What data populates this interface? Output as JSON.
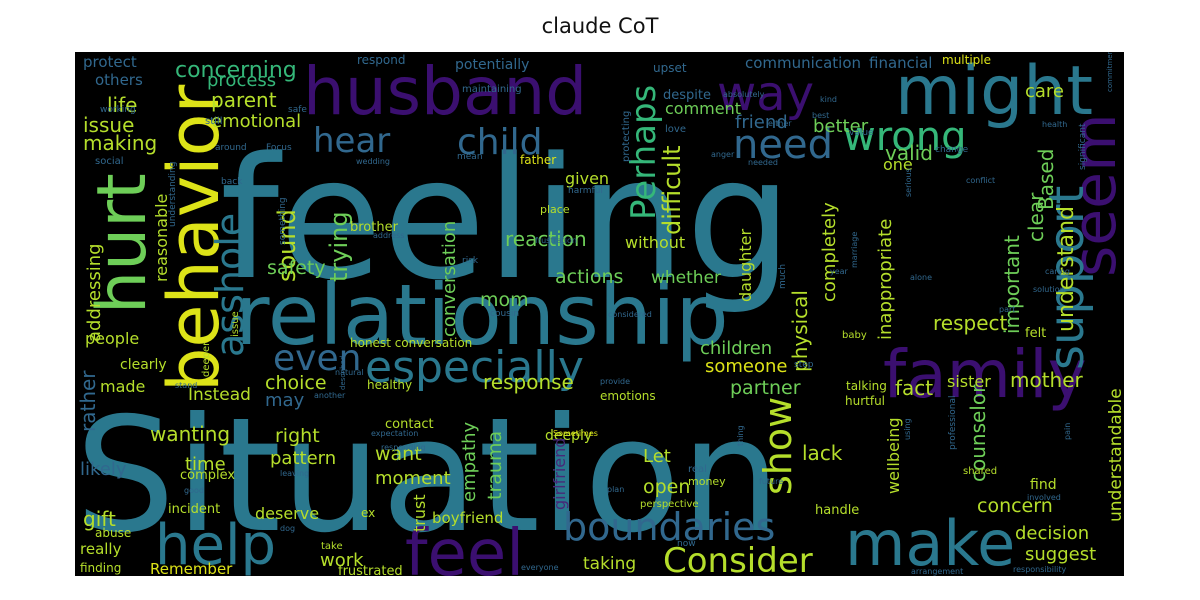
{
  "title": "claude CoT",
  "background_color": "#000000",
  "palette": {
    "p1": "#3b0f70",
    "p2": "#46327e",
    "p3": "#365c8d",
    "p4": "#277f8e",
    "p5": "#1fa187",
    "p6": "#4ac16d",
    "p7": "#a0da39",
    "p8": "#fde725",
    "d1": "#482878",
    "d2": "#31688e",
    "d3": "#2a788e",
    "d4": "#35b779",
    "d5": "#6ece58",
    "d6": "#b5de2b",
    "d7": "#dde318"
  },
  "words": [
    {
      "text": "feeling",
      "color": "d3"
    },
    {
      "text": "Situation",
      "color": "d3"
    },
    {
      "text": "relationship",
      "color": "d3"
    },
    {
      "text": "husband",
      "color": "p1"
    },
    {
      "text": "might",
      "color": "d3"
    },
    {
      "text": "behavior",
      "color": "d7"
    },
    {
      "text": "hurt",
      "color": "d5"
    },
    {
      "text": "help",
      "color": "d3"
    },
    {
      "text": "feel",
      "color": "p1"
    },
    {
      "text": "make",
      "color": "d3"
    },
    {
      "text": "family",
      "color": "p1"
    },
    {
      "text": "seem",
      "color": "p1"
    },
    {
      "text": "support",
      "color": "d3"
    },
    {
      "text": "especially",
      "color": "d3"
    },
    {
      "text": "way",
      "color": "p1"
    },
    {
      "text": "boundaries",
      "color": "d2"
    },
    {
      "text": "Consider",
      "color": "d6"
    },
    {
      "text": "hear",
      "color": "d2"
    },
    {
      "text": "child",
      "color": "d2"
    },
    {
      "text": "need",
      "color": "d2"
    },
    {
      "text": "wrong",
      "color": "d4"
    },
    {
      "text": "asshole",
      "color": "d3"
    },
    {
      "text": "even",
      "color": "d2"
    },
    {
      "text": "Perhaps",
      "color": "d4"
    },
    {
      "text": "show",
      "color": "d6"
    },
    {
      "text": "concerning",
      "color": "d4"
    },
    {
      "text": "life",
      "color": "d6"
    },
    {
      "text": "issue",
      "color": "d6"
    },
    {
      "text": "making",
      "color": "d6"
    },
    {
      "text": "parent",
      "color": "d6"
    },
    {
      "text": "process",
      "color": "d4"
    },
    {
      "text": "emotional",
      "color": "d6"
    },
    {
      "text": "communication",
      "color": "d2"
    },
    {
      "text": "financial",
      "color": "d2"
    },
    {
      "text": "care",
      "color": "d6"
    },
    {
      "text": "friend",
      "color": "d2"
    },
    {
      "text": "better",
      "color": "d5"
    },
    {
      "text": "comment",
      "color": "d5"
    },
    {
      "text": "valid",
      "color": "d5"
    },
    {
      "text": "difficult",
      "color": "d6"
    },
    {
      "text": "understand",
      "color": "d6"
    },
    {
      "text": "important",
      "color": "d5"
    },
    {
      "text": "clear",
      "color": "d5"
    },
    {
      "text": "Based",
      "color": "d5"
    },
    {
      "text": "sound",
      "color": "d6"
    },
    {
      "text": "trying",
      "color": "d5"
    },
    {
      "text": "conversation",
      "color": "d5"
    },
    {
      "text": "reaction",
      "color": "d5"
    },
    {
      "text": "actions",
      "color": "d5"
    },
    {
      "text": "whether",
      "color": "d5"
    },
    {
      "text": "safety",
      "color": "d5"
    },
    {
      "text": "mom",
      "color": "d5"
    },
    {
      "text": "children",
      "color": "d5"
    },
    {
      "text": "respect",
      "color": "d6"
    },
    {
      "text": "choice",
      "color": "d6"
    },
    {
      "text": "response",
      "color": "d6"
    },
    {
      "text": "someone",
      "color": "d7"
    },
    {
      "text": "partner",
      "color": "d5"
    },
    {
      "text": "fact",
      "color": "d6"
    },
    {
      "text": "sister",
      "color": "d6"
    },
    {
      "text": "mother",
      "color": "d6"
    },
    {
      "text": "Instead",
      "color": "d6"
    },
    {
      "text": "right",
      "color": "d6"
    },
    {
      "text": "wanting",
      "color": "d6"
    },
    {
      "text": "time",
      "color": "d6"
    },
    {
      "text": "pattern",
      "color": "d6"
    },
    {
      "text": "want",
      "color": "d6"
    },
    {
      "text": "moment",
      "color": "d6"
    },
    {
      "text": "empathy",
      "color": "d5"
    },
    {
      "text": "trauma",
      "color": "d5"
    },
    {
      "text": "Let",
      "color": "d6"
    },
    {
      "text": "open",
      "color": "d6"
    },
    {
      "text": "lack",
      "color": "d6"
    },
    {
      "text": "counselor",
      "color": "d5"
    },
    {
      "text": "concern",
      "color": "d6"
    },
    {
      "text": "decision",
      "color": "d6"
    },
    {
      "text": "suggest",
      "color": "d6"
    },
    {
      "text": "taking",
      "color": "d6"
    },
    {
      "text": "work",
      "color": "d6"
    },
    {
      "text": "deserve",
      "color": "d6"
    },
    {
      "text": "boyfriend",
      "color": "d6"
    },
    {
      "text": "gift",
      "color": "d6"
    },
    {
      "text": "really",
      "color": "d6"
    },
    {
      "text": "Remember",
      "color": "d7"
    },
    {
      "text": "likely",
      "color": "d2"
    },
    {
      "text": "rather",
      "color": "d2"
    },
    {
      "text": "made",
      "color": "d6"
    },
    {
      "text": "people",
      "color": "d6"
    },
    {
      "text": "addressing",
      "color": "d6"
    },
    {
      "text": "reasonable",
      "color": "d6"
    },
    {
      "text": "physical",
      "color": "d6"
    },
    {
      "text": "completely",
      "color": "d6"
    },
    {
      "text": "inappropriate",
      "color": "d6"
    },
    {
      "text": "wellbeing",
      "color": "d6"
    },
    {
      "text": "understandable",
      "color": "d6"
    },
    {
      "text": "daughter",
      "color": "d6"
    },
    {
      "text": "without",
      "color": "d6"
    },
    {
      "text": "given",
      "color": "d6"
    },
    {
      "text": "one",
      "color": "d6"
    },
    {
      "text": "trust",
      "color": "d6"
    },
    {
      "text": "may",
      "color": "d2"
    },
    {
      "text": "protect",
      "color": "d2"
    },
    {
      "text": "others",
      "color": "d2"
    },
    {
      "text": "respond",
      "color": "d2"
    },
    {
      "text": "potentially",
      "color": "d2"
    },
    {
      "text": "upset",
      "color": "d2"
    },
    {
      "text": "multiple",
      "color": "d7"
    },
    {
      "text": "despite",
      "color": "d2"
    },
    {
      "text": "father",
      "color": "d7"
    },
    {
      "text": "brother",
      "color": "d6"
    },
    {
      "text": "honest conversation",
      "color": "d6"
    },
    {
      "text": "clearly",
      "color": "d6"
    },
    {
      "text": "healthy",
      "color": "d6"
    },
    {
      "text": "contact",
      "color": "d6"
    },
    {
      "text": "deeply",
      "color": "d6"
    },
    {
      "text": "emotions",
      "color": "d6"
    },
    {
      "text": "complex",
      "color": "d6"
    },
    {
      "text": "incident",
      "color": "d6"
    },
    {
      "text": "handle",
      "color": "d6"
    },
    {
      "text": "find",
      "color": "d6"
    },
    {
      "text": "felt",
      "color": "d6"
    },
    {
      "text": "hurtful",
      "color": "d6"
    },
    {
      "text": "talking",
      "color": "d6"
    },
    {
      "text": "girlfriend",
      "color": "d1"
    },
    {
      "text": "frustrated",
      "color": "d6"
    },
    {
      "text": "abuse",
      "color": "d6"
    },
    {
      "text": "finding",
      "color": "d6"
    },
    {
      "text": "deeper",
      "color": "d6"
    },
    {
      "text": "issue",
      "color": "d6"
    },
    {
      "text": "maintaining",
      "color": "d2"
    },
    {
      "text": "protecting",
      "color": "d2"
    },
    {
      "text": "love",
      "color": "d2"
    },
    {
      "text": "social",
      "color": "d2"
    },
    {
      "text": "working",
      "color": "d2"
    },
    {
      "text": "safe",
      "color": "d2"
    },
    {
      "text": "still",
      "color": "d2"
    },
    {
      "text": "around",
      "color": "d2"
    },
    {
      "text": "Focus",
      "color": "d2"
    },
    {
      "text": "back",
      "color": "d2"
    },
    {
      "text": "mean",
      "color": "d2"
    },
    {
      "text": "wedding",
      "color": "d2"
    },
    {
      "text": "harmful",
      "color": "d2"
    },
    {
      "text": "place",
      "color": "d6"
    },
    {
      "text": "frustration",
      "color": "d2"
    },
    {
      "text": "address",
      "color": "d2"
    },
    {
      "text": "something",
      "color": "d2"
    },
    {
      "text": "risk",
      "color": "d2"
    },
    {
      "text": "cousin",
      "color": "d2"
    },
    {
      "text": "absolutely",
      "color": "d2"
    },
    {
      "text": "kind",
      "color": "d2"
    },
    {
      "text": "either",
      "color": "d2"
    },
    {
      "text": "best",
      "color": "d2"
    },
    {
      "text": "value",
      "color": "d2"
    },
    {
      "text": "health",
      "color": "d2"
    },
    {
      "text": "significant",
      "color": "d2"
    },
    {
      "text": "anger",
      "color": "d2"
    },
    {
      "text": "change",
      "color": "d2"
    },
    {
      "text": "needed",
      "color": "d2"
    },
    {
      "text": "serious",
      "color": "d2"
    },
    {
      "text": "conflict",
      "color": "d2"
    },
    {
      "text": "marriage",
      "color": "d2"
    },
    {
      "text": "much",
      "color": "d2"
    },
    {
      "text": "alone",
      "color": "d2"
    },
    {
      "text": "year",
      "color": "d2"
    },
    {
      "text": "caring",
      "color": "d2"
    },
    {
      "text": "solution",
      "color": "d2"
    },
    {
      "text": "part",
      "color": "d2"
    },
    {
      "text": "considered",
      "color": "d2"
    },
    {
      "text": "provide",
      "color": "d2"
    },
    {
      "text": "baby",
      "color": "d6"
    },
    {
      "text": "step",
      "color": "d2"
    },
    {
      "text": "natural",
      "color": "d2"
    },
    {
      "text": "stand",
      "color": "d2"
    },
    {
      "text": "another",
      "color": "d2"
    },
    {
      "text": "expectation",
      "color": "d2"
    },
    {
      "text": "Sometimes",
      "color": "d7"
    },
    {
      "text": "responding",
      "color": "d2"
    },
    {
      "text": "leaving",
      "color": "d2"
    },
    {
      "text": "good",
      "color": "d2"
    },
    {
      "text": "real",
      "color": "d2"
    },
    {
      "text": "money",
      "color": "d6"
    },
    {
      "text": "thing",
      "color": "d2"
    },
    {
      "text": "using",
      "color": "d2"
    },
    {
      "text": "professional",
      "color": "d2"
    },
    {
      "text": "shared",
      "color": "d6"
    },
    {
      "text": "pain",
      "color": "d2"
    },
    {
      "text": "involved",
      "color": "d2"
    },
    {
      "text": "future",
      "color": "d2"
    },
    {
      "text": "plan",
      "color": "d2"
    },
    {
      "text": "perspective",
      "color": "d6"
    },
    {
      "text": "ex",
      "color": "d6"
    },
    {
      "text": "take",
      "color": "d6"
    },
    {
      "text": "everyone",
      "color": "d2"
    },
    {
      "text": "dog",
      "color": "d2"
    },
    {
      "text": "now",
      "color": "d2"
    },
    {
      "text": "arrangement",
      "color": "d2"
    },
    {
      "text": "responsibility",
      "color": "d2"
    },
    {
      "text": "described",
      "color": "d2"
    },
    {
      "text": "commitment",
      "color": "d2"
    },
    {
      "text": "understanding",
      "color": "d2"
    }
  ]
}
